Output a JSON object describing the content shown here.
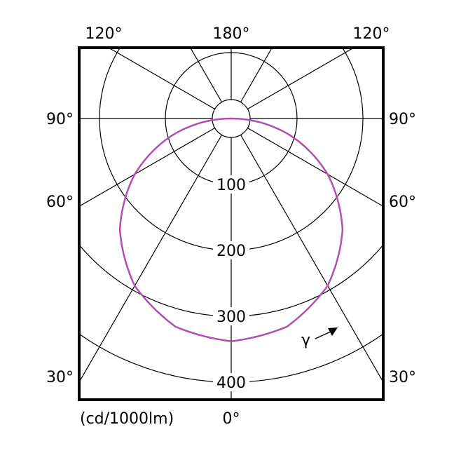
{
  "chart_data": {
    "type": "polar",
    "unit_label": "(cd/1000lm)",
    "radial_ticks": [
      100,
      200,
      300,
      400
    ],
    "radial_max": 400,
    "angle_labels": {
      "left": [
        "120°",
        "90°",
        "60°",
        "30°"
      ],
      "right": [
        "120°",
        "90°",
        "60°",
        "30°"
      ],
      "top": "180°",
      "bottom": "0°"
    },
    "angle_symbol": "γ",
    "spoke_step_deg": 30,
    "grid": true,
    "series": [
      {
        "color": "#b04fae",
        "gamma_deg": [
          0,
          15,
          30,
          45,
          60,
          75,
          90
        ],
        "intensity": [
          338,
          327,
          293,
          239,
          169,
          88,
          0
        ]
      }
    ]
  }
}
